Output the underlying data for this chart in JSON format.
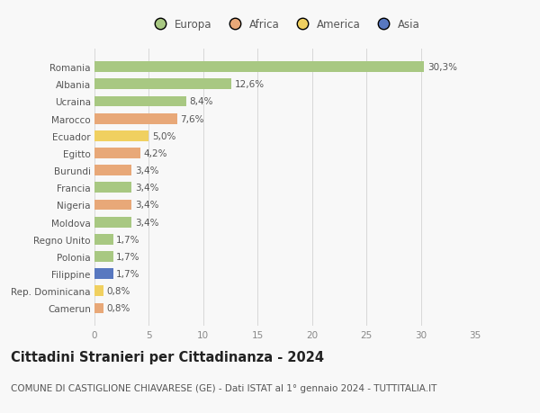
{
  "countries": [
    "Romania",
    "Albania",
    "Ucraina",
    "Marocco",
    "Ecuador",
    "Egitto",
    "Burundi",
    "Francia",
    "Nigeria",
    "Moldova",
    "Regno Unito",
    "Polonia",
    "Filippine",
    "Rep. Dominicana",
    "Camerun"
  ],
  "values": [
    30.3,
    12.6,
    8.4,
    7.6,
    5.0,
    4.2,
    3.4,
    3.4,
    3.4,
    3.4,
    1.7,
    1.7,
    1.7,
    0.8,
    0.8
  ],
  "labels": [
    "30,3%",
    "12,6%",
    "8,4%",
    "7,6%",
    "5,0%",
    "4,2%",
    "3,4%",
    "3,4%",
    "3,4%",
    "3,4%",
    "1,7%",
    "1,7%",
    "1,7%",
    "0,8%",
    "0,8%"
  ],
  "continents": [
    "Europa",
    "Europa",
    "Europa",
    "Africa",
    "America",
    "Africa",
    "Africa",
    "Europa",
    "Africa",
    "Europa",
    "Europa",
    "Europa",
    "Asia",
    "America",
    "Africa"
  ],
  "colors": {
    "Europa": "#a8c882",
    "Africa": "#e8a878",
    "America": "#f0d060",
    "Asia": "#5878c0"
  },
  "legend_order": [
    "Europa",
    "Africa",
    "America",
    "Asia"
  ],
  "xlim": [
    0,
    35
  ],
  "xticks": [
    0,
    5,
    10,
    15,
    20,
    25,
    30,
    35
  ],
  "title": "Cittadini Stranieri per Cittadinanza - 2024",
  "subtitle": "COMUNE DI CASTIGLIONE CHIAVARESE (GE) - Dati ISTAT al 1° gennaio 2024 - TUTTITALIA.IT",
  "background_color": "#f8f8f8",
  "grid_color": "#d8d8d8",
  "bar_height": 0.62,
  "title_fontsize": 10.5,
  "subtitle_fontsize": 7.5,
  "tick_fontsize": 7.5,
  "label_fontsize": 7.5,
  "legend_fontsize": 8.5
}
